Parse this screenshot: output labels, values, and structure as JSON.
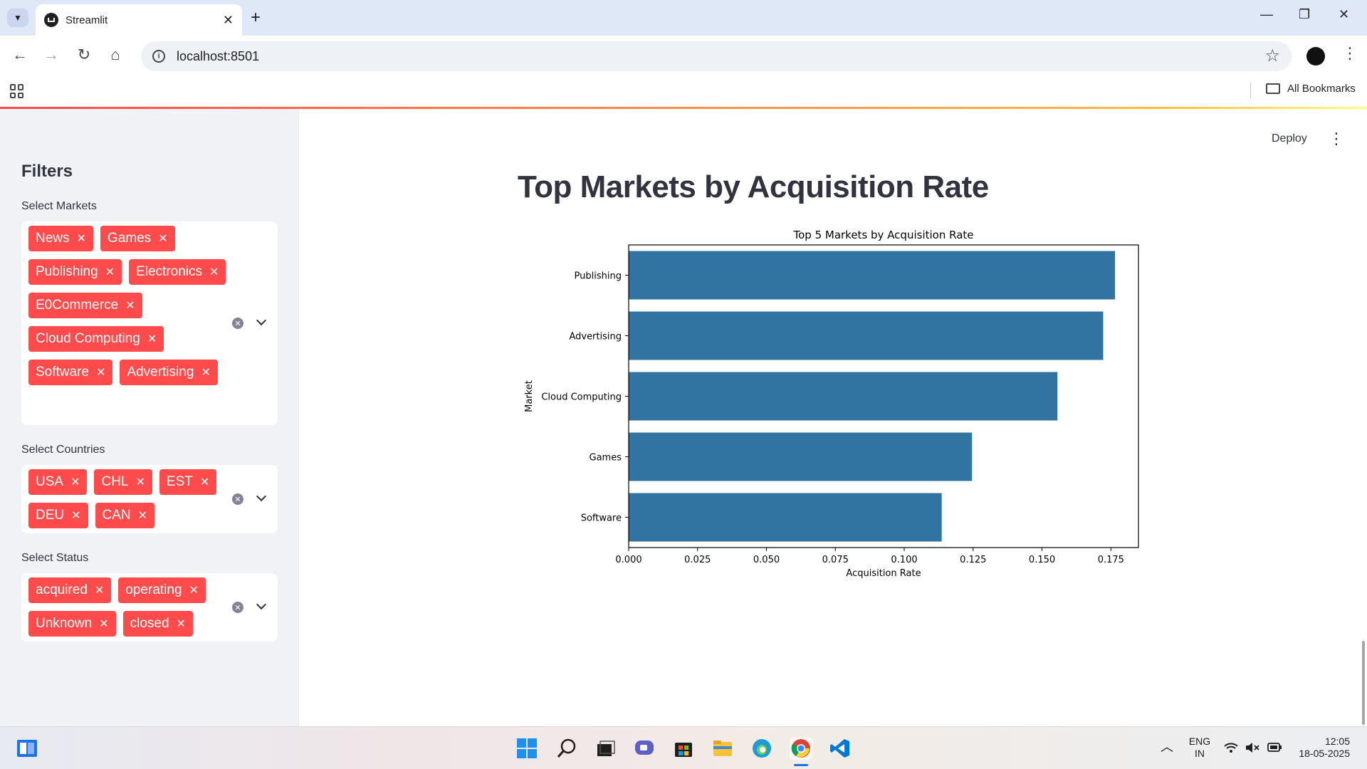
{
  "browser": {
    "tab_title": "Streamlit",
    "url": "localhost:8501",
    "bookmarks_label": "All Bookmarks"
  },
  "header": {
    "deploy_label": "Deploy"
  },
  "sidebar": {
    "title": "Filters",
    "markets": {
      "label": "Select Markets",
      "selected": [
        "News",
        "Games",
        "Publishing",
        "Electronics",
        "E0Commerce",
        "Cloud Computing",
        "Software",
        "Advertising"
      ]
    },
    "countries": {
      "label": "Select Countries",
      "selected": [
        "USA",
        "CHL",
        "EST",
        "DEU",
        "CAN"
      ]
    },
    "status": {
      "label": "Select Status",
      "selected": [
        "acquired",
        "operating",
        "Unknown",
        "closed"
      ]
    }
  },
  "main": {
    "title": "Top Markets by Acquisition Rate"
  },
  "chart_data": {
    "type": "bar",
    "orientation": "horizontal",
    "title": "Top 5 Markets by Acquisition Rate",
    "xlabel": "Acquisition Rate",
    "ylabel": "Market",
    "categories": [
      "Publishing",
      "Advertising",
      "Cloud Computing",
      "Games",
      "Software"
    ],
    "values": [
      0.1765,
      0.1722,
      0.1556,
      0.1246,
      0.1136
    ],
    "xlim": [
      0,
      0.185
    ],
    "xticks": [
      "0.000",
      "0.025",
      "0.050",
      "0.075",
      "0.100",
      "0.125",
      "0.150",
      "0.175"
    ],
    "bar_color": "#3274a1",
    "grid": false
  },
  "taskbar": {
    "lang_line1": "ENG",
    "lang_line2": "IN",
    "time": "12:05",
    "date": "18-05-2025"
  },
  "colors": {
    "chip": "#ff4b4b",
    "sidebar_bg": "#f0f2f6",
    "text": "#31333f"
  }
}
